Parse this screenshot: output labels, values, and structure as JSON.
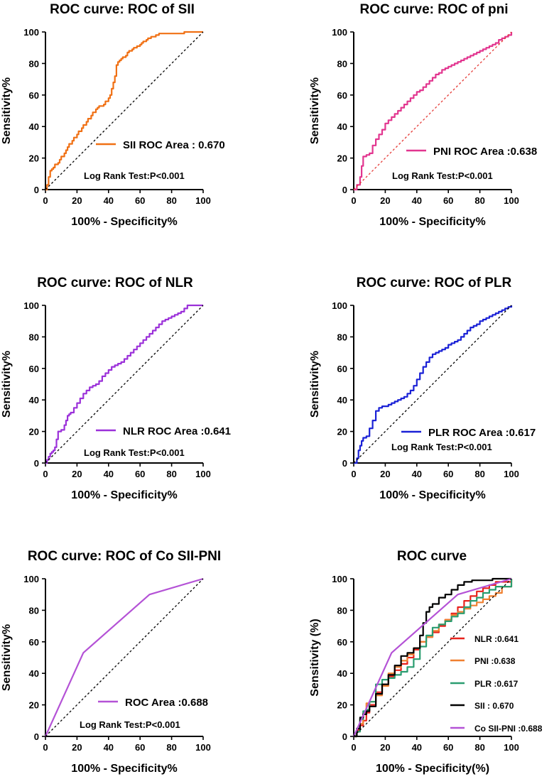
{
  "chart_data": [
    {
      "type": "line",
      "title": "ROC curve: ROC of SII",
      "xlabel": "100% - Specificity%",
      "ylabel": "Sensitivity%",
      "xlim": [
        0,
        100
      ],
      "ylim": [
        0,
        100
      ],
      "xticks": [
        "0",
        "20",
        "40",
        "60",
        "80",
        "100"
      ],
      "yticks": [
        "0",
        "20",
        "40",
        "60",
        "80",
        "100"
      ],
      "legend_position": "lower-right",
      "annotation": "Log Rank Test:P<0.001",
      "series": [
        {
          "name": "SII ROC Area :  0.670",
          "color": "#f07014",
          "x": [
            0,
            1,
            2,
            2,
            3,
            4,
            5,
            6,
            8,
            9,
            10,
            12,
            13,
            14,
            15,
            17,
            18,
            20,
            21,
            23,
            24,
            26,
            27,
            29,
            30,
            32,
            33,
            34,
            35,
            37,
            38,
            40,
            41,
            42,
            43,
            44,
            45,
            46,
            47,
            48,
            49,
            50,
            51,
            52,
            53,
            55,
            56,
            57,
            58,
            60,
            61,
            62,
            64,
            65,
            67,
            68,
            70,
            72,
            75,
            80,
            88,
            100
          ],
          "y": [
            0,
            3,
            5,
            8,
            12,
            13,
            14,
            16,
            17,
            19,
            21,
            23,
            25,
            27,
            29,
            31,
            33,
            35,
            37,
            39,
            41,
            43,
            45,
            47,
            49,
            51,
            52,
            53,
            53,
            54,
            56,
            58,
            60,
            64,
            68,
            72,
            79,
            81,
            82,
            83,
            84,
            84,
            85,
            87,
            88,
            89,
            90,
            90,
            91,
            92,
            93,
            94,
            95,
            96,
            97,
            97,
            98,
            99,
            99,
            99,
            100,
            100
          ],
          "step": true
        },
        {
          "name": "reference",
          "color": "#000000",
          "x": [
            0,
            100
          ],
          "y": [
            0,
            100
          ],
          "dashed": true
        }
      ]
    },
    {
      "type": "line",
      "title": "ROC curve: ROC of pni",
      "xlabel": "100% - Specificity%",
      "ylabel": "Sensitivity%",
      "xlim": [
        0,
        100
      ],
      "ylim": [
        0,
        100
      ],
      "xticks": [
        "0",
        "20",
        "40",
        "60",
        "80",
        "100"
      ],
      "yticks": [
        "0",
        "20",
        "40",
        "60",
        "80",
        "100"
      ],
      "legend_position": "lower-right",
      "annotation": "Log Rank Test:P<0.001",
      "series": [
        {
          "name": "PNI ROC Area :0.638",
          "color": "#e2358f",
          "x": [
            0,
            2,
            4,
            5,
            6,
            8,
            10,
            12,
            14,
            16,
            18,
            20,
            22,
            24,
            26,
            28,
            30,
            32,
            34,
            36,
            38,
            40,
            42,
            44,
            46,
            48,
            50,
            52,
            54,
            56,
            58,
            60,
            62,
            64,
            66,
            68,
            70,
            72,
            74,
            76,
            78,
            80,
            82,
            84,
            86,
            88,
            90,
            92,
            94,
            96,
            98,
            100
          ],
          "y": [
            0,
            3,
            8,
            15,
            21,
            22,
            23,
            28,
            32,
            35,
            38,
            42,
            44,
            46,
            48,
            50,
            52,
            54,
            56,
            58,
            60,
            62,
            63,
            65,
            67,
            69,
            71,
            73,
            74,
            76,
            77,
            78,
            79,
            80,
            81,
            82,
            83,
            84,
            85,
            86,
            87,
            88,
            89,
            90,
            91,
            92,
            93,
            95,
            96,
            97,
            98,
            100
          ],
          "step": true
        },
        {
          "name": "reference",
          "color": "#e53935",
          "x": [
            0,
            100
          ],
          "y": [
            0,
            100
          ],
          "dashed": true
        }
      ]
    },
    {
      "type": "line",
      "title": "ROC curve: ROC of NLR",
      "xlabel": "100% - Specificity%",
      "ylabel": "Sensitivity%",
      "xlim": [
        0,
        100
      ],
      "ylim": [
        0,
        100
      ],
      "xticks": [
        "0",
        "20",
        "40",
        "60",
        "80",
        "100"
      ],
      "yticks": [
        "0",
        "20",
        "40",
        "60",
        "80",
        "100"
      ],
      "legend_position": "lower-right",
      "annotation": "Log Rank Test:P<0.001",
      "series": [
        {
          "name": "NLR ROC Area :0.641",
          "color": "#9b30d9",
          "x": [
            0,
            1,
            2,
            3,
            4,
            5,
            6,
            7,
            8,
            10,
            12,
            13,
            14,
            15,
            16,
            18,
            20,
            22,
            24,
            26,
            28,
            30,
            32,
            34,
            36,
            38,
            40,
            42,
            44,
            46,
            48,
            50,
            52,
            54,
            56,
            58,
            60,
            62,
            64,
            66,
            68,
            70,
            72,
            74,
            76,
            78,
            80,
            82,
            84,
            86,
            88,
            90,
            100
          ],
          "y": [
            0,
            2,
            4,
            6,
            7,
            8,
            10,
            15,
            20,
            21,
            24,
            27,
            30,
            31,
            32,
            35,
            38,
            41,
            44,
            46,
            48,
            49,
            50,
            52,
            55,
            57,
            59,
            61,
            62,
            63,
            64,
            66,
            68,
            70,
            72,
            74,
            76,
            78,
            80,
            82,
            84,
            86,
            88,
            90,
            91,
            92,
            93,
            94,
            95,
            96,
            98,
            100,
            100
          ],
          "step": true
        },
        {
          "name": "reference",
          "color": "#000000",
          "x": [
            0,
            100
          ],
          "y": [
            0,
            100
          ],
          "dashed": true
        }
      ]
    },
    {
      "type": "line",
      "title": "ROC curve: ROC of PLR",
      "xlabel": "100% - Specificity%",
      "ylabel": "Sensitivity%",
      "xlim": [
        0,
        100
      ],
      "ylim": [
        0,
        100
      ],
      "xticks": [
        "0",
        "20",
        "40",
        "60",
        "80",
        "100"
      ],
      "yticks": [
        "0",
        "20",
        "40",
        "60",
        "80",
        "100"
      ],
      "legend_position": "lower-right",
      "annotation": "Log Rank Test:P<0.001",
      "series": [
        {
          "name": "PLR ROC Area :0.617",
          "color": "#1a21d6",
          "x": [
            0,
            2,
            3,
            4,
            5,
            6,
            8,
            10,
            12,
            14,
            16,
            18,
            20,
            22,
            24,
            26,
            28,
            30,
            32,
            34,
            36,
            38,
            40,
            42,
            44,
            46,
            48,
            50,
            52,
            54,
            56,
            58,
            60,
            62,
            64,
            66,
            68,
            70,
            72,
            74,
            76,
            78,
            80,
            82,
            84,
            86,
            88,
            90,
            92,
            94,
            96,
            98,
            100
          ],
          "y": [
            0,
            3,
            8,
            11,
            14,
            16,
            17,
            22,
            27,
            33,
            35,
            36,
            36,
            37,
            38,
            39,
            40,
            41,
            42,
            44,
            46,
            49,
            53,
            57,
            61,
            64,
            67,
            69,
            70,
            71,
            72,
            73,
            75,
            76,
            77,
            78,
            80,
            82,
            84,
            86,
            87,
            88,
            90,
            91,
            92,
            93,
            94,
            95,
            96,
            97,
            98,
            99,
            100
          ],
          "step": true
        },
        {
          "name": "reference",
          "color": "#000000",
          "x": [
            0,
            100
          ],
          "y": [
            0,
            100
          ],
          "dashed": true
        }
      ]
    },
    {
      "type": "line",
      "title": "ROC curve: ROC of Co SII-PNI",
      "xlabel": "100% - Specificity%",
      "ylabel": "Sensitivity%",
      "xlim": [
        0,
        100
      ],
      "ylim": [
        0,
        100
      ],
      "xticks": [
        "0",
        "20",
        "40",
        "60",
        "80",
        "100"
      ],
      "yticks": [
        "0",
        "20",
        "40",
        "60",
        "80",
        "100"
      ],
      "legend_position": "lower-right",
      "annotation": "Log Rank Test:P<0.001",
      "series": [
        {
          "name": "ROC Area :0.688",
          "color": "#b452d6",
          "x": [
            0,
            24,
            66,
            100
          ],
          "y": [
            0,
            53,
            90,
            100
          ]
        },
        {
          "name": "reference",
          "color": "#000000",
          "x": [
            0,
            100
          ],
          "y": [
            0,
            100
          ],
          "dashed": true
        }
      ]
    },
    {
      "type": "line",
      "title": "ROC curve",
      "xlabel": "100% - Specificity(%)",
      "ylabel": "Sensitivity (%)",
      "xlim": [
        0,
        100
      ],
      "ylim": [
        0,
        100
      ],
      "xticks": [
        "0",
        "20",
        "40",
        "60",
        "80",
        "100"
      ],
      "yticks": [
        "0",
        "20",
        "40",
        "60",
        "80",
        "100"
      ],
      "legend_position": "lower-right",
      "series": [
        {
          "name": "NLR  :0.641",
          "color": "#e8221c",
          "x": [
            0,
            2,
            4,
            6,
            8,
            10,
            14,
            18,
            22,
            26,
            30,
            34,
            38,
            42,
            46,
            50,
            54,
            58,
            62,
            66,
            70,
            74,
            78,
            82,
            86,
            90,
            100
          ],
          "y": [
            0,
            4,
            7,
            10,
            15,
            20,
            28,
            33,
            38,
            42,
            46,
            50,
            55,
            60,
            63,
            66,
            70,
            74,
            78,
            82,
            86,
            89,
            92,
            94,
            96,
            98,
            100
          ],
          "step": true
        },
        {
          "name": "PNI   :0.638",
          "color": "#f08030",
          "x": [
            0,
            2,
            4,
            6,
            8,
            10,
            14,
            18,
            22,
            26,
            30,
            34,
            38,
            42,
            46,
            50,
            54,
            58,
            62,
            66,
            70,
            74,
            78,
            82,
            86,
            90,
            94,
            100
          ],
          "y": [
            0,
            3,
            8,
            15,
            21,
            22,
            26,
            32,
            40,
            44,
            48,
            52,
            56,
            60,
            63,
            67,
            71,
            74,
            77,
            79,
            81,
            83,
            85,
            87,
            89,
            91,
            95,
            100
          ],
          "step": true
        },
        {
          "name": "PLR :0.617",
          "color": "#2a9d70",
          "x": [
            0,
            2,
            4,
            6,
            8,
            10,
            14,
            18,
            22,
            26,
            30,
            34,
            38,
            42,
            46,
            50,
            54,
            58,
            62,
            66,
            70,
            74,
            78,
            82,
            86,
            90,
            100
          ],
          "y": [
            0,
            3,
            11,
            16,
            17,
            22,
            33,
            36,
            37,
            39,
            41,
            44,
            49,
            57,
            64,
            69,
            71,
            73,
            76,
            78,
            82,
            86,
            88,
            91,
            93,
            95,
            100
          ],
          "step": true
        },
        {
          "name": "SII    :  0.670",
          "color": "#000000",
          "x": [
            0,
            2,
            4,
            6,
            8,
            10,
            14,
            18,
            22,
            26,
            30,
            34,
            38,
            42,
            44,
            46,
            48,
            50,
            54,
            58,
            62,
            66,
            70,
            75,
            88,
            100
          ],
          "y": [
            0,
            5,
            12,
            14,
            16,
            19,
            27,
            33,
            39,
            45,
            51,
            53,
            56,
            64,
            72,
            79,
            82,
            84,
            88,
            90,
            93,
            96,
            98,
            99,
            100,
            100
          ],
          "step": true
        },
        {
          "name": "Co SII-PNI  :0.688",
          "color": "#b452d6",
          "x": [
            0,
            24,
            66,
            100
          ],
          "y": [
            0,
            53,
            90,
            100
          ]
        },
        {
          "name": "reference",
          "color": "#000000",
          "x": [
            0,
            100
          ],
          "y": [
            0,
            100
          ],
          "dashed": true
        }
      ]
    }
  ]
}
